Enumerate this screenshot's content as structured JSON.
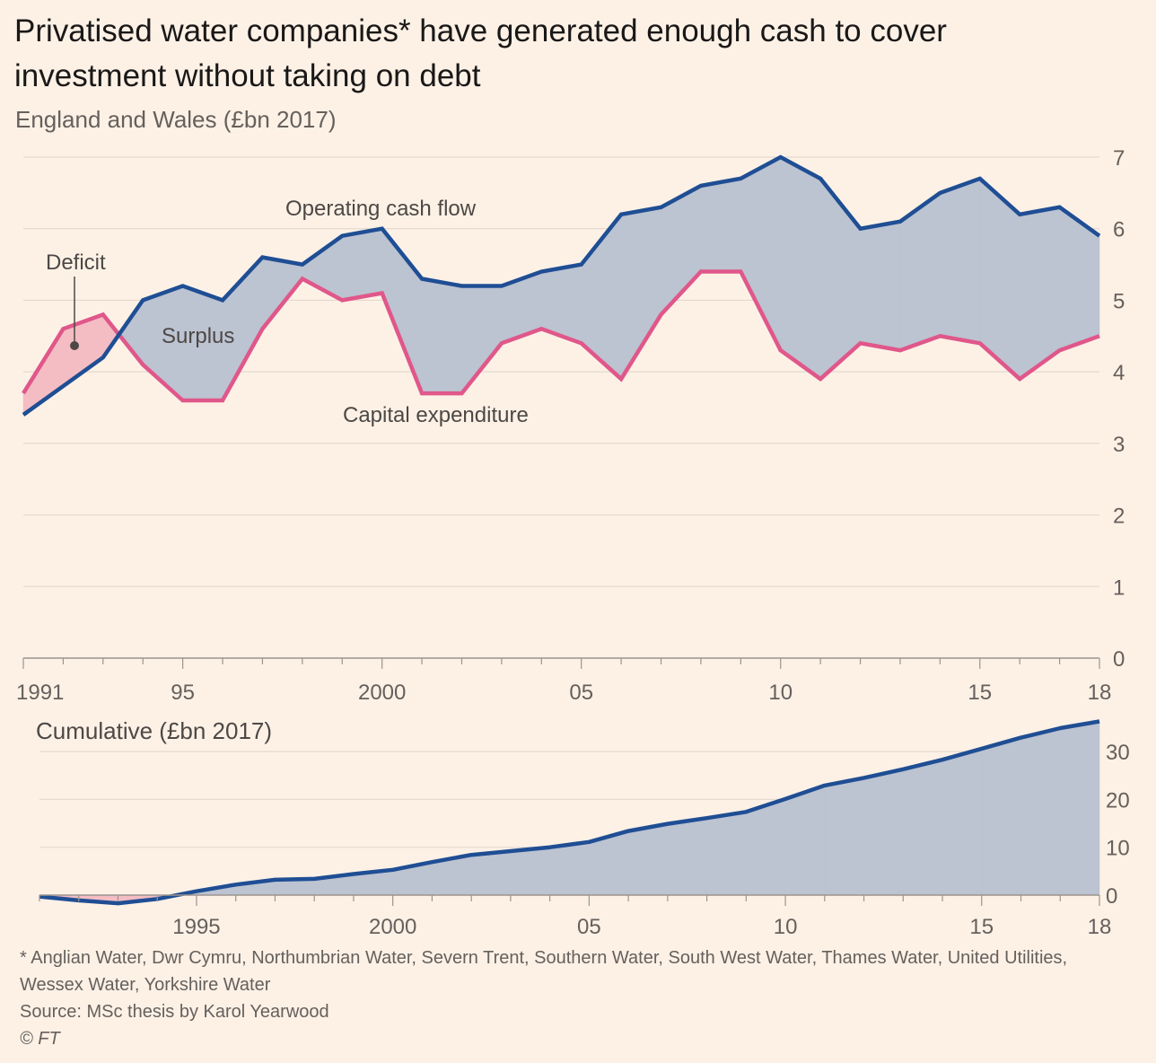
{
  "title": "Privatised water companies* have generated enough cash to cover investment without taking on debt",
  "subtitle": "England and Wales (£bn 2017)",
  "footnote": "* Anglian Water, Dwr Cymru, Northumbrian Water, Severn Trent, Southern Water, South West Water, Thames Water, United Utilities, Wessex Water, Yorkshire Water",
  "source": "Source: MSc thesis by Karol Yearwood",
  "copyright": "© FT",
  "colors": {
    "background": "#fdf1e6",
    "operating_cash_flow": "#1f4e94",
    "capital_expenditure": "#e0578a",
    "surplus_fill": "#bcc3d1",
    "deficit_fill": "#f4bdc4",
    "grid": "#e3d9cf"
  },
  "chart_data": [
    {
      "type": "line",
      "years": [
        1991,
        1992,
        1993,
        1994,
        1995,
        1996,
        1997,
        1998,
        1999,
        2000,
        2001,
        2002,
        2003,
        2004,
        2005,
        2006,
        2007,
        2008,
        2009,
        2010,
        2011,
        2012,
        2013,
        2014,
        2015,
        2016,
        2017,
        2018
      ],
      "series": [
        {
          "name": "Operating cash flow",
          "values": [
            3.4,
            3.8,
            4.2,
            5.0,
            5.2,
            5.0,
            5.6,
            5.5,
            5.9,
            6.0,
            5.3,
            5.2,
            5.2,
            5.4,
            5.5,
            6.2,
            6.3,
            6.6,
            6.7,
            7.0,
            6.7,
            6.0,
            6.1,
            6.5,
            6.7,
            6.2,
            6.3,
            5.9
          ]
        },
        {
          "name": "Capital expenditure",
          "values": [
            3.7,
            4.6,
            4.8,
            4.1,
            3.6,
            3.6,
            4.6,
            5.3,
            5.0,
            5.1,
            3.7,
            3.7,
            4.4,
            4.6,
            4.4,
            3.9,
            4.8,
            5.4,
            5.4,
            4.3,
            3.9,
            4.4,
            4.3,
            4.5,
            4.4,
            3.9,
            4.3,
            4.5
          ]
        }
      ],
      "annotations": [
        "Deficit",
        "Surplus"
      ],
      "ylim": [
        0,
        7
      ],
      "yticks": [
        "0",
        "1",
        "2",
        "3",
        "4",
        "5",
        "6",
        "7"
      ],
      "xtick_years": [
        1991,
        1995,
        2000,
        2005,
        2010,
        2015,
        2018
      ],
      "xtick_labels": [
        "1991",
        "95",
        "2000",
        "05",
        "10",
        "15",
        "18"
      ],
      "grid": true
    },
    {
      "type": "area",
      "title": "Cumulative (£bn 2017)",
      "years": [
        1991,
        1992,
        1993,
        1994,
        1995,
        1996,
        1997,
        1998,
        1999,
        2000,
        2001,
        2002,
        2003,
        2004,
        2005,
        2006,
        2007,
        2008,
        2009,
        2010,
        2011,
        2012,
        2013,
        2014,
        2015,
        2016,
        2017,
        2018
      ],
      "values": [
        -0.3,
        -1.1,
        -1.7,
        -0.8,
        0.8,
        2.2,
        3.2,
        3.4,
        4.4,
        5.3,
        6.9,
        8.4,
        9.2,
        10.0,
        11.1,
        13.4,
        14.9,
        16.1,
        17.4,
        20.1,
        22.9,
        24.5,
        26.3,
        28.3,
        30.6,
        32.9,
        34.9,
        36.3
      ],
      "ylim": [
        0,
        36
      ],
      "yticks": [
        "0",
        "10",
        "20",
        "30"
      ],
      "xtick_years": [
        1995,
        2000,
        2005,
        2010,
        2015,
        2018
      ],
      "xtick_labels": [
        "1995",
        "2000",
        "05",
        "10",
        "15",
        "18"
      ],
      "grid": true
    }
  ]
}
